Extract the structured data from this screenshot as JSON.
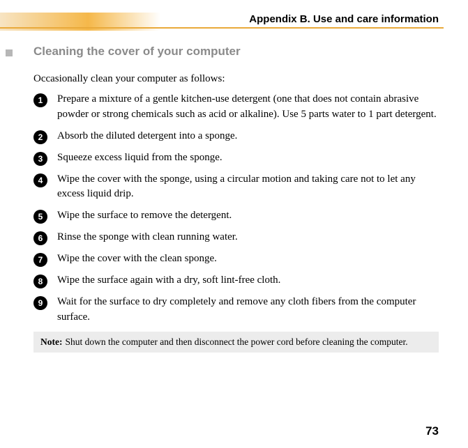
{
  "header": {
    "title": "Appendix B. Use and care information",
    "band_gradient_start": "#f7e4c3",
    "band_gradient_mid": "#f5b84a",
    "underline_color": "#e9a93a"
  },
  "section": {
    "title": "Cleaning the cover of your computer",
    "title_color": "#8a8a8a",
    "marker_color": "#b7b7b7",
    "intro": "Occasionally clean your computer as follows:"
  },
  "steps": [
    "Prepare a mixture of a gentle kitchen-use detergent (one that does not contain abrasive powder or strong chemicals such as acid or alkaline). Use 5 parts water to 1 part detergent.",
    "Absorb the diluted detergent into a sponge.",
    "Squeeze excess liquid from the sponge.",
    "Wipe the cover with the sponge, using a circular motion and taking care not to let any excess liquid drip.",
    "Wipe the surface to remove the detergent.",
    "Rinse the sponge with clean running water.",
    "Wipe the cover with the clean sponge.",
    "Wipe the surface again with a dry, soft lint-free cloth.",
    "Wait for the surface to dry completely and remove any cloth fibers from the computer surface."
  ],
  "note": {
    "label": "Note:",
    "text": "Shut down the computer and then disconnect the power cord before cleaning the computer.",
    "background": "#ececec"
  },
  "page_number": "73"
}
